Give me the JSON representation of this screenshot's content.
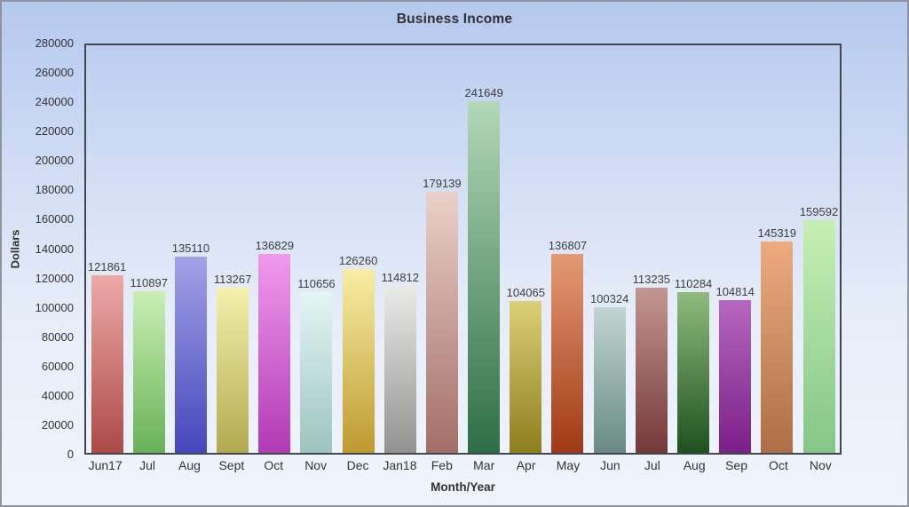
{
  "chart_data": {
    "type": "bar",
    "title": "Business Income",
    "xlabel": "Month/Year",
    "ylabel": "Dollars",
    "categories": [
      "Jun17",
      "Jul",
      "Aug",
      "Sept",
      "Oct",
      "Nov",
      "Dec",
      "Jan18",
      "Feb",
      "Mar",
      "Apr",
      "May",
      "Jun",
      "Jul",
      "Aug",
      "Sep",
      "Oct",
      "Nov"
    ],
    "values": [
      121861,
      110897,
      135110,
      113267,
      136829,
      110656,
      126260,
      114812,
      179139,
      241649,
      104065,
      136807,
      100324,
      113235,
      110284,
      104814,
      145319,
      159592
    ],
    "bar_colors": [
      {
        "top": "#ecaaa8",
        "bottom": "#ad4a48"
      },
      {
        "top": "#c9efb4",
        "bottom": "#68b258"
      },
      {
        "top": "#a2a2e6",
        "bottom": "#4646bb"
      },
      {
        "top": "#f5f0ac",
        "bottom": "#b2aa50"
      },
      {
        "top": "#f09aec",
        "bottom": "#b13ab6"
      },
      {
        "top": "#e3f6f3",
        "bottom": "#9dc4bf"
      },
      {
        "top": "#f9eea4",
        "bottom": "#bd9a30"
      },
      {
        "top": "#eaeae8",
        "bottom": "#929290"
      },
      {
        "top": "#ead0ca",
        "bottom": "#a26f66"
      },
      {
        "top": "#b2d8b8",
        "bottom": "#2e6e46"
      },
      {
        "top": "#dcd077",
        "bottom": "#8d7e1e"
      },
      {
        "top": "#e49a72",
        "bottom": "#a03a16"
      },
      {
        "top": "#c0d5d1",
        "bottom": "#698a84"
      },
      {
        "top": "#c29694",
        "bottom": "#743936"
      },
      {
        "top": "#8fbc7d",
        "bottom": "#1e511e"
      },
      {
        "top": "#b766bf",
        "bottom": "#7a2088"
      },
      {
        "top": "#ecac7e",
        "bottom": "#ae6e46"
      },
      {
        "top": "#c6efb5",
        "bottom": "#84c686"
      }
    ],
    "ylim": [
      0,
      280000
    ],
    "ytick_step": 20000,
    "grid": false,
    "legend_position": "none"
  },
  "colors": {
    "background_top": "#b4c8ee",
    "background_mid1": "#cfdbf4",
    "background_mid2": "#e6edf9",
    "background_bottom": "#f0f4fc",
    "frame_border": "#8e959e",
    "plot_border": "#42464d",
    "text": "#333333"
  }
}
